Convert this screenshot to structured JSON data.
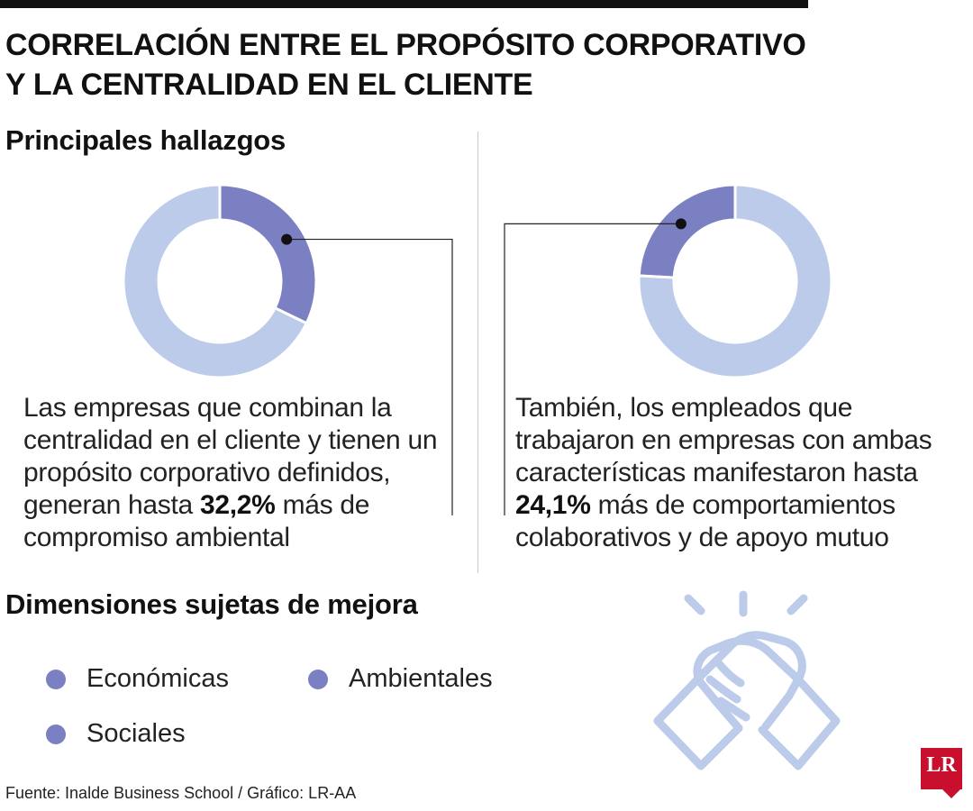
{
  "title_lines": [
    "CORRELACIÓN ENTRE EL PROPÓSITO CORPORATIVO",
    "Y LA CENTRALIDAD EN EL CLIENTE"
  ],
  "sections": {
    "findings": "Principales hallazgos",
    "dimensions": "Dimensiones sujetas de mejora"
  },
  "chart_data": [
    {
      "type": "pie",
      "slices": [
        {
          "value": 32.2,
          "color": "#7b80c2",
          "highlight": true
        },
        {
          "value": 67.8,
          "color": "#bccbea"
        }
      ],
      "text": {
        "before": "Las empresas que combinan la centralidad en el cliente y tienen un propósito corporativo definidos, generan hasta ",
        "bold": "32,2%",
        "after": " más de compromiso ambiental"
      }
    },
    {
      "type": "pie",
      "slices": [
        {
          "value": 24.1,
          "color": "#7b80c2",
          "highlight": true
        },
        {
          "value": 75.9,
          "color": "#bccbea"
        }
      ],
      "text": {
        "before": "También, los empleados que trabajaron en empresas con ambas características manifestaron hasta ",
        "bold": "24,1%",
        "after": " más de comportamientos colaborativos y de apoyo mutuo"
      }
    }
  ],
  "legend": [
    {
      "label": "Económicas",
      "color": "#7b80c2"
    },
    {
      "label": "Ambientales",
      "color": "#7b80c2"
    },
    {
      "label": "Sociales",
      "color": "#7b80c2"
    }
  ],
  "icon": "handshake-icon",
  "source": "Fuente: Inalde Business School / Gráfico: LR-AA",
  "logo": "LR",
  "colors": {
    "accent": "#7b80c2",
    "light": "#bccbea",
    "logo": "#c8102e"
  }
}
